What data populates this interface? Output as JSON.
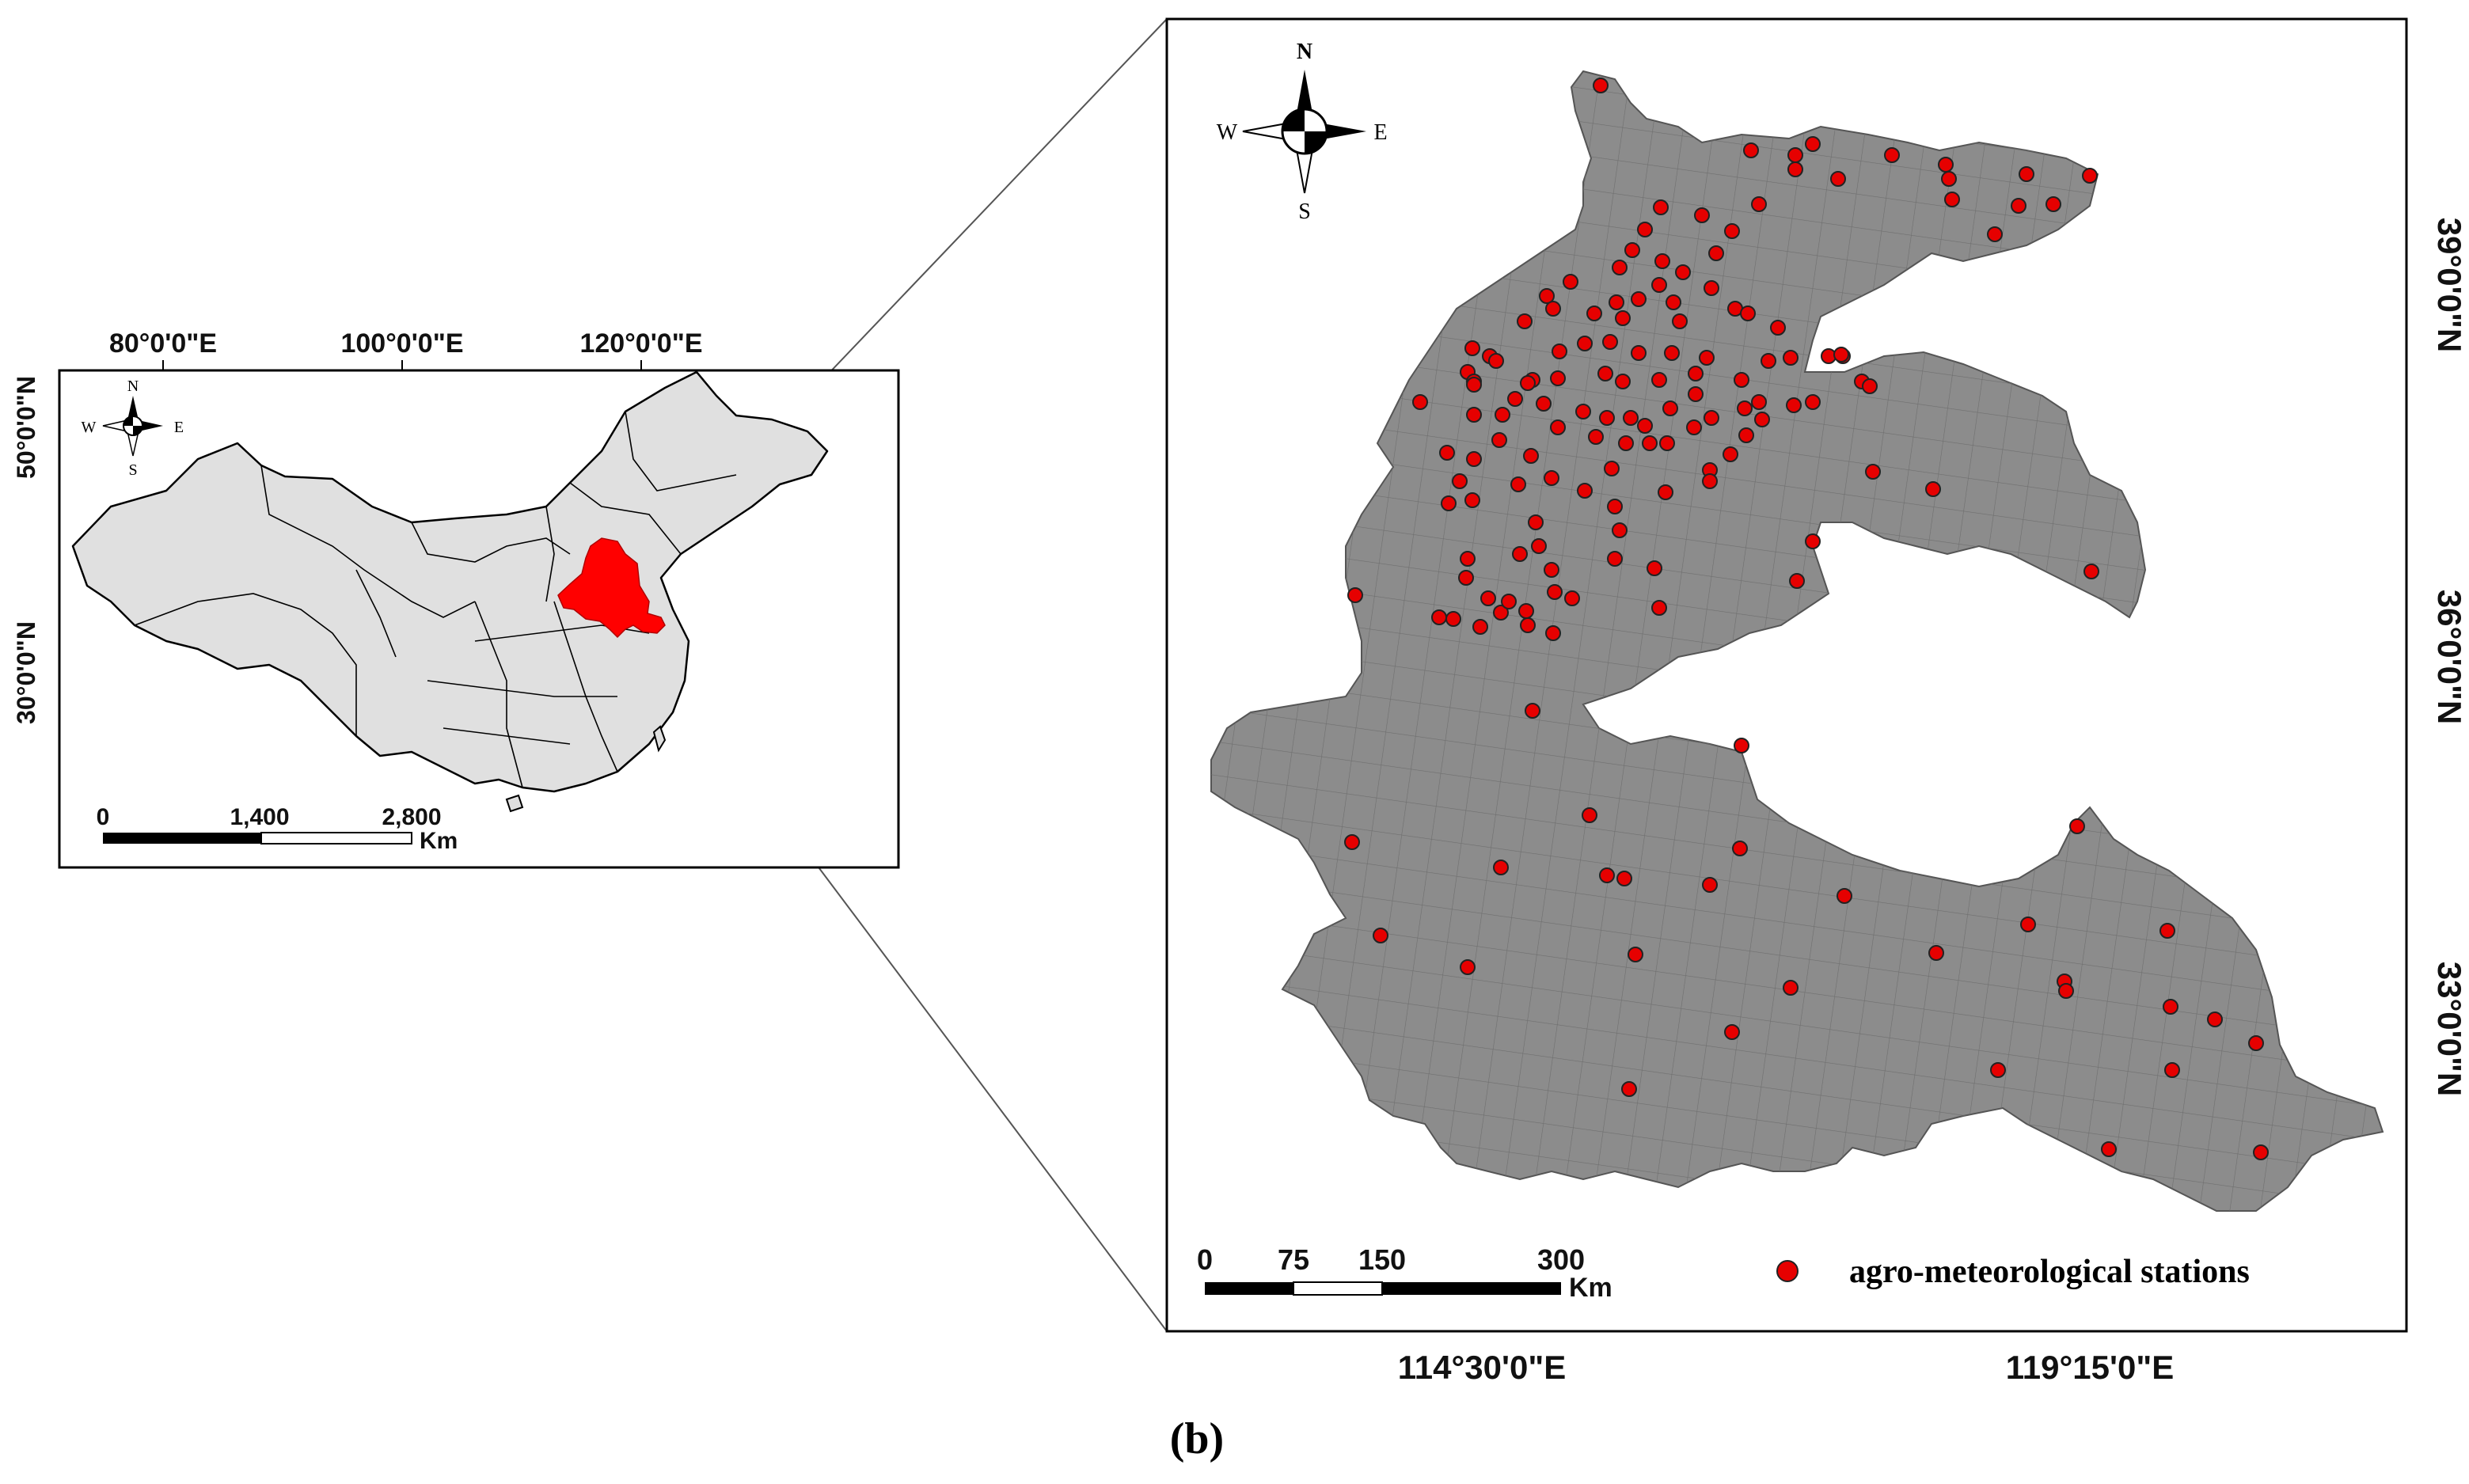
{
  "inset_map": {
    "lon_labels": [
      "80°0'0\"E",
      "100°0'0\"E",
      "120°0'0\"E"
    ],
    "lat_labels": [
      "50°0'0\"N",
      "30°0'0\"N"
    ],
    "compass": {
      "n": "N",
      "s": "S",
      "w": "W",
      "e": "E"
    },
    "scale_labels": [
      "0",
      "1,400",
      "2,800"
    ],
    "scale_unit": "Km",
    "country_color": "#e0e0e0",
    "study_area_color": "#ff0000"
  },
  "main_map": {
    "lon_labels": [
      "114°30'0\"E",
      "119°15'0\"E"
    ],
    "lat_labels": [
      "39°0'0\"N",
      "36°0'0\"N",
      "33°0'0\"N"
    ],
    "compass": {
      "n": "N",
      "s": "S",
      "w": "W",
      "e": "E"
    },
    "scale_labels": [
      "0",
      "75",
      "150",
      "300"
    ],
    "scale_unit": "Km",
    "legend_label": "agro-meteorological stations",
    "region_color": "#8c8c8c",
    "station_color": "#e60000",
    "station_count": 152
  },
  "panel_label": "(b)"
}
